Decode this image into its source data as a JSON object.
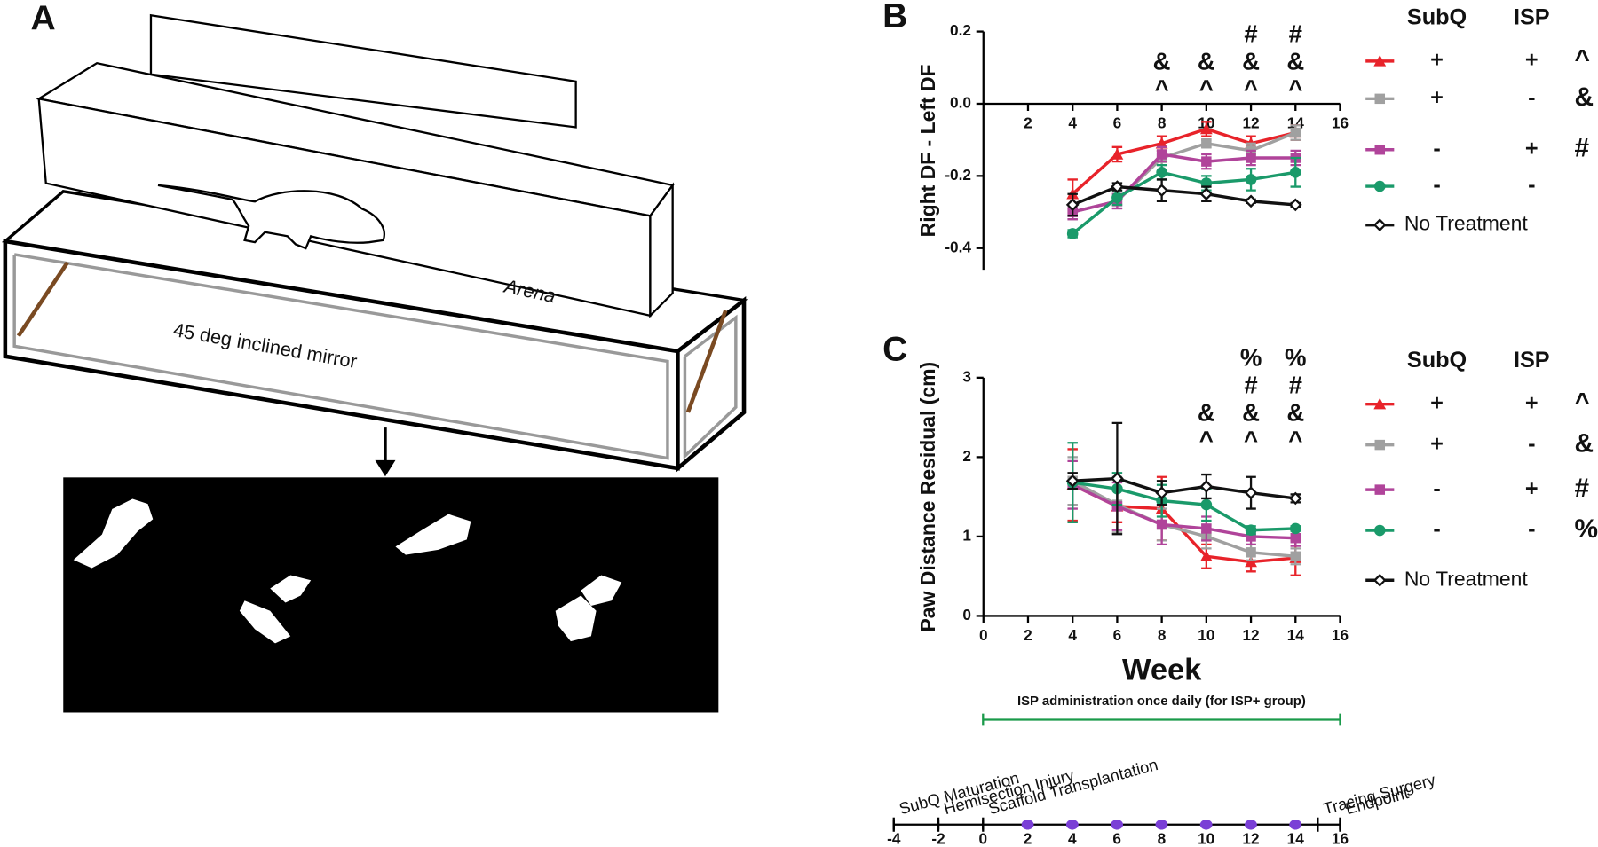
{
  "illustration": {
    "panel": "A",
    "arena_label": "Arena",
    "mirror_label": "45 deg inclined mirror"
  },
  "chart_data": [
    {
      "type": "line",
      "panel": "B",
      "ylabel": "Right DF - Left DF",
      "legend_headers": [
        "SubQ",
        "ISP"
      ],
      "x": [
        4,
        6,
        8,
        10,
        12,
        14
      ],
      "xlim": [
        0,
        16
      ],
      "xticks": [
        2,
        4,
        6,
        8,
        10,
        12,
        14,
        16
      ],
      "ylim": [
        -0.46,
        0.2
      ],
      "yticks": [
        -0.4,
        -0.2,
        {
          "value": 0,
          "label": "0.0"
        },
        0.2
      ],
      "series": [
        {
          "color": "#e8232a",
          "marker": "triangle",
          "subq": "+",
          "isp": "+",
          "symbol": "^",
          "values": [
            -0.25,
            -0.14,
            -0.11,
            -0.07,
            -0.11,
            -0.08
          ],
          "errors": [
            0.04,
            0.02,
            0.02,
            0.02,
            0.02,
            0.02
          ]
        },
        {
          "color": "#a0a0a0",
          "marker": "square",
          "subq": "+",
          "isp": "-",
          "symbol": "&",
          "values": [
            -0.3,
            -0.27,
            -0.15,
            -0.11,
            -0.13,
            -0.08
          ],
          "errors": [
            0.02,
            0.02,
            0.02,
            0.01,
            0.02,
            0.02
          ]
        },
        {
          "color": "#b0449a",
          "marker": "square",
          "subq": "-",
          "isp": "+",
          "symbol": "#",
          "values": [
            -0.3,
            -0.27,
            -0.14,
            -0.16,
            -0.15,
            -0.15
          ],
          "errors": [
            0.02,
            0.02,
            0.02,
            0.02,
            0.02,
            0.02
          ]
        },
        {
          "color": "#1a9a6a",
          "marker": "circle",
          "subq": "-",
          "isp": "-",
          "values": [
            -0.36,
            -0.26,
            -0.19,
            -0.22,
            -0.21,
            -0.19
          ],
          "errors": [
            0.01,
            0.02,
            0.02,
            0.02,
            0.03,
            0.04
          ]
        },
        {
          "name": "No Treatment",
          "color": "#111111",
          "marker": "diamond-open",
          "values": [
            -0.28,
            -0.23,
            -0.24,
            -0.25,
            -0.27,
            -0.28
          ],
          "errors": [
            0.03,
            0.01,
            0.03,
            0.02,
            0.005,
            0.005
          ]
        }
      ],
      "annotations": [
        {
          "x": 8,
          "lines": [
            "&",
            "^"
          ]
        },
        {
          "x": 10,
          "lines": [
            "&",
            "^"
          ]
        },
        {
          "x": 12,
          "lines": [
            "#",
            "&",
            "^"
          ]
        },
        {
          "x": 14,
          "lines": [
            "#",
            "&",
            "^"
          ]
        }
      ]
    },
    {
      "type": "line",
      "panel": "C",
      "ylabel": "Paw Distance Residual (cm)",
      "xlabel": "Week",
      "legend_headers": [
        "SubQ",
        "ISP"
      ],
      "x": [
        4,
        6,
        8,
        10,
        12,
        14
      ],
      "xlim": [
        0,
        16
      ],
      "xticks": [
        0,
        2,
        4,
        6,
        8,
        10,
        12,
        14,
        16
      ],
      "ylim": [
        0,
        3
      ],
      "yticks": [
        0,
        1,
        2,
        3
      ],
      "series": [
        {
          "color": "#e8232a",
          "marker": "triangle",
          "subq": "+",
          "isp": "+",
          "symbol": "^",
          "values": [
            1.65,
            1.38,
            1.35,
            0.75,
            0.68,
            0.73
          ],
          "errors": [
            0.45,
            0.2,
            0.4,
            0.15,
            0.12,
            0.22
          ]
        },
        {
          "color": "#a0a0a0",
          "marker": "square",
          "subq": "+",
          "isp": "-",
          "symbol": "&",
          "values": [
            1.7,
            1.4,
            1.15,
            1.0,
            0.8,
            0.75
          ],
          "errors": [
            0.3,
            0.35,
            0.2,
            0.15,
            0.1,
            0.1
          ]
        },
        {
          "color": "#b0449a",
          "marker": "square",
          "subq": "-",
          "isp": "+",
          "symbol": "#",
          "values": [
            1.65,
            1.38,
            1.15,
            1.1,
            1.0,
            0.98
          ],
          "errors": [
            0.3,
            0.3,
            0.25,
            0.15,
            0.1,
            0.1
          ]
        },
        {
          "color": "#1a9a6a",
          "marker": "circle",
          "subq": "-",
          "isp": "-",
          "symbol": "%",
          "values": [
            1.68,
            1.6,
            1.45,
            1.4,
            1.08,
            1.1
          ],
          "errors": [
            0.5,
            0.2,
            0.2,
            0.2,
            0.05,
            0.03
          ]
        },
        {
          "name": "No Treatment",
          "color": "#111111",
          "marker": "diamond-open",
          "values": [
            1.7,
            1.73,
            1.55,
            1.63,
            1.55,
            1.48
          ],
          "errors": [
            0.1,
            0.7,
            0.15,
            0.15,
            0.2,
            0.05
          ]
        }
      ],
      "annotations": [
        {
          "x": 10,
          "lines": [
            "&",
            "^"
          ]
        },
        {
          "x": 12,
          "lines": [
            "%",
            "#",
            "&",
            "^"
          ]
        },
        {
          "x": 14,
          "lines": [
            "%",
            "#",
            "&",
            "^"
          ]
        }
      ]
    },
    {
      "type": "timeline",
      "xlim": [
        -4,
        16
      ],
      "xticks": [
        -4,
        -2,
        0,
        2,
        4,
        6,
        8,
        10,
        12,
        14,
        16
      ],
      "events": [
        {
          "label": "SubQ Maturation",
          "x": -4
        },
        {
          "label": "Hemisection Injury",
          "x": -2
        },
        {
          "label": "Scaffold Transplantation",
          "x": 0
        },
        {
          "label": "Tracing Surgery",
          "x": 15
        },
        {
          "label": "Endpoint",
          "x": 16
        }
      ],
      "dosing_weeks": [
        2,
        4,
        6,
        8,
        10,
        12,
        14
      ],
      "dosing_color": "#7a3fd6",
      "bar": {
        "label": "ISP administration once daily (for ISP+ group)",
        "start": 0,
        "end": 16,
        "color": "#1a9a4a"
      }
    }
  ]
}
